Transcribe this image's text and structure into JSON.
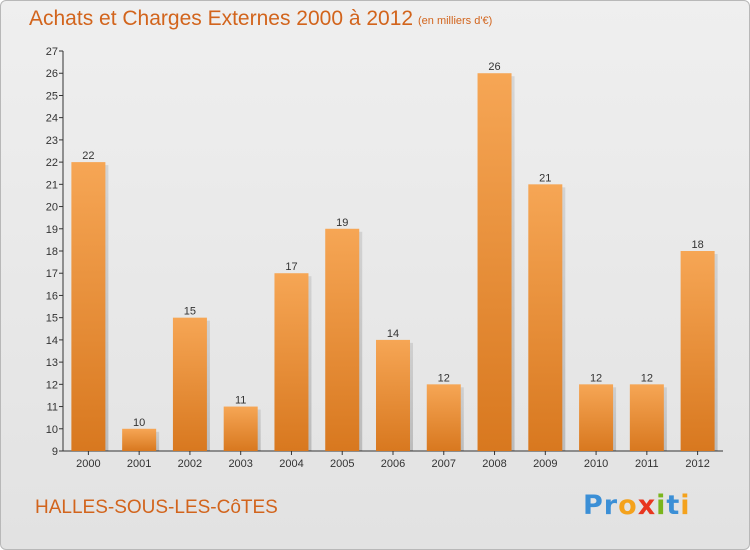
{
  "header": {
    "title": "Achats et Charges Externes 2000 à 2012",
    "unit": "(en milliers d'€)"
  },
  "footer": {
    "commune": "HALLES-SOUS-LES-CôTES",
    "logo_letters": [
      {
        "char": "P",
        "color": "#3b8fd6"
      },
      {
        "char": "r",
        "color": "#3b8fd6"
      },
      {
        "char": "o",
        "color": "#f4a21c"
      },
      {
        "char": "x",
        "color": "#e8361f"
      },
      {
        "char": "i",
        "color": "#7ab51d"
      },
      {
        "char": "t",
        "color": "#3b8fd6"
      },
      {
        "char": "i",
        "color": "#f4a21c"
      }
    ]
  },
  "colors": {
    "bar_top": "#f6a655",
    "bar_bottom": "#d8781f",
    "text_accent": "#d2641c"
  },
  "chart_data": {
    "type": "bar",
    "title": "Achats et Charges Externes 2000 à 2012",
    "xlabel": "",
    "ylabel": "(en milliers d'€)",
    "categories": [
      "2000",
      "2001",
      "2002",
      "2003",
      "2004",
      "2005",
      "2006",
      "2007",
      "2008",
      "2009",
      "2010",
      "2011",
      "2012"
    ],
    "values": [
      22,
      10,
      15,
      11,
      17,
      19,
      14,
      12,
      26,
      21,
      12,
      12,
      18
    ],
    "ylim": [
      9,
      27
    ],
    "yticks": [
      9,
      10,
      11,
      12,
      13,
      14,
      15,
      16,
      17,
      18,
      19,
      20,
      21,
      22,
      23,
      24,
      25,
      26,
      27
    ],
    "grid": false
  }
}
